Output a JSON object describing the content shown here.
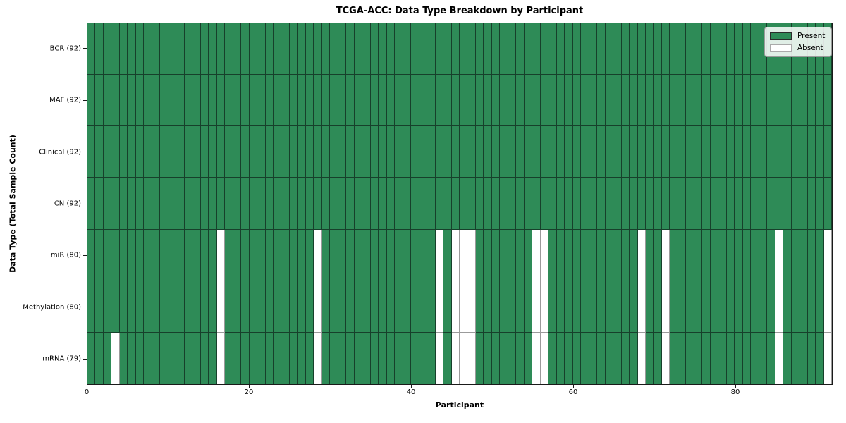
{
  "colors": {
    "present": "#2e8b57",
    "absent": "#ffffff",
    "present_edge": "#17402b",
    "absent_edge": "#9b9b9b",
    "axis": "#1a1a1a"
  },
  "legend": {
    "present_label": "Present",
    "absent_label": "Absent"
  },
  "chart_data": {
    "type": "heatmap",
    "title": "TCGA-ACC: Data Type Breakdown by Participant",
    "xlabel": "Participant",
    "ylabel": "Data Type (Total Sample Count)",
    "n_participants": 92,
    "x_ticks": [
      0,
      20,
      40,
      60,
      80
    ],
    "xlim": [
      0,
      92
    ],
    "grid": false,
    "legend_position": "upper right",
    "legend": [
      {
        "label": "Present",
        "state": "present"
      },
      {
        "label": "Absent",
        "state": "absent"
      }
    ],
    "rows": [
      {
        "label": "BCR (92)",
        "data_type": "BCR",
        "present_count": 92,
        "absent_participants": []
      },
      {
        "label": "MAF (92)",
        "data_type": "MAF",
        "present_count": 92,
        "absent_participants": []
      },
      {
        "label": "Clinical (92)",
        "data_type": "Clinical",
        "present_count": 92,
        "absent_participants": []
      },
      {
        "label": "CN (92)",
        "data_type": "CN",
        "present_count": 92,
        "absent_participants": []
      },
      {
        "label": "miR (80)",
        "data_type": "miR",
        "present_count": 80,
        "absent_participants": [
          16,
          28,
          43,
          45,
          46,
          47,
          55,
          56,
          68,
          71,
          85,
          91
        ]
      },
      {
        "label": "Methylation (80)",
        "data_type": "Methylation",
        "present_count": 80,
        "absent_participants": [
          16,
          28,
          43,
          45,
          46,
          47,
          55,
          56,
          68,
          71,
          85,
          91
        ]
      },
      {
        "label": "mRNA (79)",
        "data_type": "mRNA",
        "present_count": 79,
        "absent_participants": [
          3,
          16,
          28,
          43,
          45,
          46,
          47,
          55,
          56,
          68,
          71,
          85,
          91
        ]
      }
    ]
  }
}
